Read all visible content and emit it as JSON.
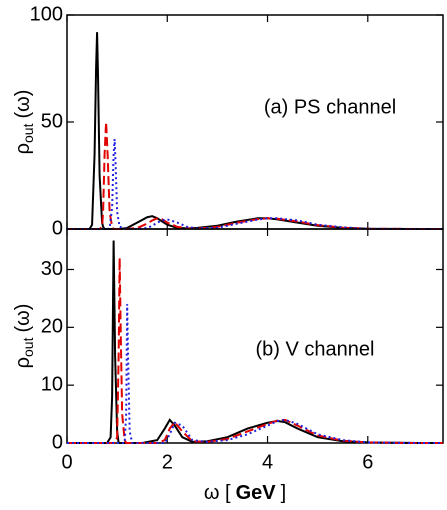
{
  "chart_data": [
    {
      "type": "line",
      "annotation": "(a) PS channel",
      "ylabel": {
        "symbol": "ρ",
        "sub": "out",
        "rest": "(ω)"
      },
      "x": [
        0,
        0.3,
        0.45,
        0.5,
        0.55,
        0.58,
        0.6,
        0.62,
        0.65,
        0.7,
        0.72,
        0.75,
        0.78,
        0.81,
        0.85,
        0.9,
        0.93,
        0.95,
        0.97,
        1.0,
        1.05,
        1.2,
        1.4,
        1.6,
        1.7,
        1.8,
        1.9,
        2.0,
        2.2,
        2.4,
        2.6,
        3.0,
        3.4,
        3.8,
        4.0,
        4.2,
        4.6,
        5.0,
        5.5,
        6.0,
        7.0,
        7.5
      ],
      "series": [
        {
          "color": "#000000",
          "dash": "solid",
          "values": [
            0,
            0,
            0,
            2,
            35,
            75,
            92,
            70,
            25,
            3,
            1,
            0,
            0,
            0,
            0,
            0,
            0,
            0,
            0,
            0,
            0,
            0.5,
            3,
            5.5,
            6,
            5,
            3.5,
            2,
            0.5,
            0.3,
            0.5,
            1.5,
            3.5,
            5,
            5,
            4.5,
            3,
            1.5,
            0.5,
            0.1,
            0,
            0
          ]
        },
        {
          "color": "#e00000",
          "dash": "dashed",
          "values": [
            0,
            0,
            0,
            0,
            0,
            0,
            0,
            0,
            0,
            1,
            8,
            35,
            50,
            35,
            8,
            1,
            0,
            0,
            0,
            0,
            0,
            0,
            0.5,
            2.5,
            4,
            5,
            4.5,
            3,
            1,
            0.3,
            0.2,
            1,
            3,
            4.6,
            5,
            4.8,
            3.5,
            1.8,
            0.6,
            0.1,
            0,
            0
          ]
        },
        {
          "color": "#2020e0",
          "dash": "dotted",
          "values": [
            0,
            0,
            0,
            0,
            0,
            0,
            0,
            0,
            0,
            0,
            0,
            0,
            0,
            0,
            0.5,
            10,
            35,
            42,
            30,
            8,
            1,
            0,
            0,
            0.5,
            1.5,
            3,
            4,
            4.5,
            3,
            1,
            0.3,
            0.6,
            2.5,
            4.4,
            5,
            5,
            4,
            2,
            0.8,
            0.1,
            0,
            0
          ]
        }
      ],
      "xlim": [
        0,
        7.5
      ],
      "xticks": [
        0,
        2,
        4,
        6
      ],
      "ylim": [
        0,
        100
      ],
      "yticks": [
        0,
        50,
        100
      ]
    },
    {
      "type": "line",
      "annotation": "(b) V channel",
      "ylabel": {
        "symbol": "ρ",
        "sub": "out",
        "rest": "(ω)"
      },
      "xlabel": {
        "symbol": "ω [",
        "unit": "GeV",
        "close": "]"
      },
      "x": [
        0,
        0.5,
        0.8,
        0.87,
        0.9,
        0.93,
        0.96,
        1.0,
        1.03,
        1.05,
        1.07,
        1.1,
        1.15,
        1.18,
        1.2,
        1.22,
        1.25,
        1.3,
        1.5,
        1.8,
        1.95,
        2.05,
        2.15,
        2.3,
        2.5,
        2.8,
        3.2,
        3.6,
        4.0,
        4.2,
        4.35,
        4.6,
        5.0,
        5.5,
        6.0,
        7.0,
        7.5
      ],
      "series": [
        {
          "color": "#000000",
          "dash": "solid",
          "values": [
            0,
            0,
            0,
            1,
            8,
            35,
            15,
            2,
            0,
            0,
            0,
            0,
            0,
            0,
            0,
            0,
            0,
            0,
            0,
            0.5,
            2.5,
            4,
            3,
            1,
            0.2,
            0.3,
            1,
            2.5,
            3.5,
            3.8,
            3.6,
            2.5,
            1,
            0.3,
            0.1,
            0,
            0
          ]
        },
        {
          "color": "#e00000",
          "dash": "dashed",
          "values": [
            0,
            0,
            0,
            0,
            0,
            0,
            0,
            1,
            15,
            32,
            20,
            5,
            0.5,
            0,
            0,
            0,
            0,
            0,
            0,
            0,
            0.5,
            2.5,
            3.6,
            2,
            0.3,
            0.2,
            0.7,
            2,
            3.3,
            3.9,
            4,
            3,
            1.3,
            0.4,
            0.1,
            0,
            0
          ]
        },
        {
          "color": "#2020e0",
          "dash": "dotted",
          "values": [
            0,
            0,
            0,
            0,
            0,
            0,
            0,
            0,
            0,
            0,
            0,
            0,
            0,
            5,
            24,
            14,
            2,
            0,
            0,
            0,
            0,
            1.5,
            3.5,
            3,
            0.5,
            0.2,
            0.5,
            1.5,
            3,
            3.8,
            4,
            3.3,
            1.5,
            0.5,
            0.1,
            0,
            0
          ]
        }
      ],
      "xlim": [
        0,
        7.5
      ],
      "xticks": [
        0,
        2,
        4,
        6
      ],
      "ylim": [
        0,
        37
      ],
      "yticks": [
        0,
        10,
        20,
        30
      ]
    }
  ]
}
